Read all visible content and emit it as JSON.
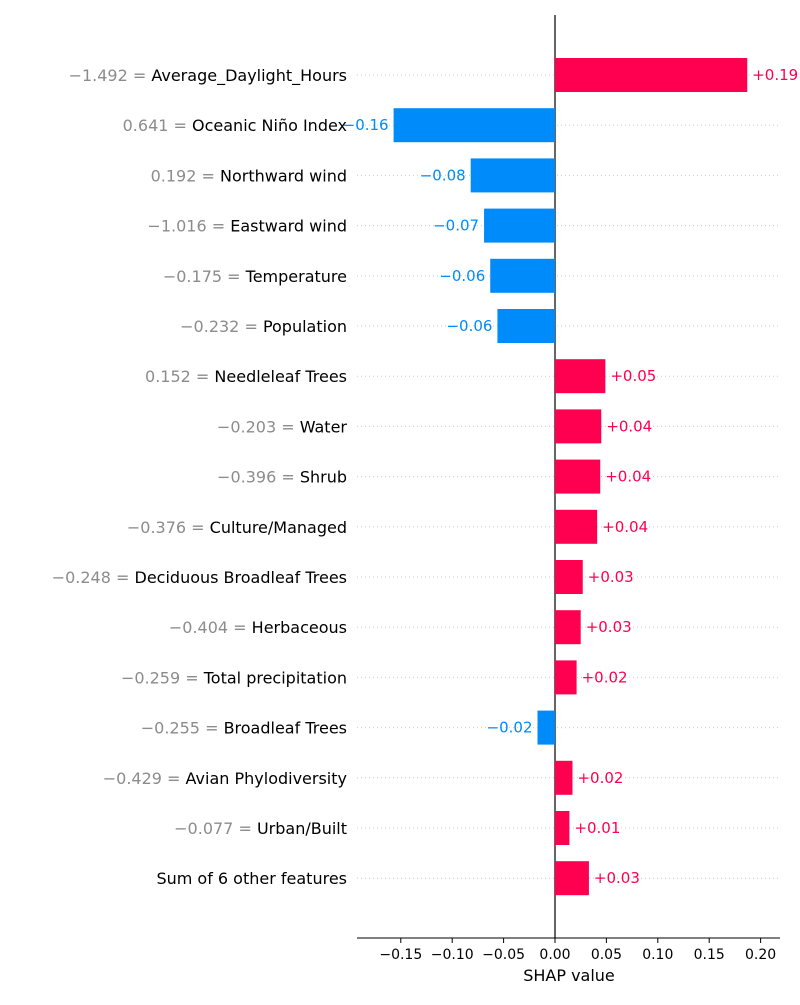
{
  "chart_data": {
    "type": "bar",
    "orientation": "horizontal",
    "title": "",
    "xlabel": "SHAP value",
    "xlim": [
      -0.195,
      0.22
    ],
    "xticks": [
      -0.15,
      -0.1,
      -0.05,
      0.0,
      0.05,
      0.1,
      0.15,
      0.2
    ],
    "xtick_labels": [
      "−0.15",
      "−0.10",
      "−0.05",
      "0.00",
      "0.05",
      "0.10",
      "0.15",
      "0.20"
    ],
    "grid": "dotted horizontal lines per row",
    "colors": {
      "positive": "#ff0051",
      "negative": "#008bfb",
      "feature_value_text": "#8c8c8c"
    },
    "features": [
      {
        "value_text": "−1.492",
        "name": "Average_Daylight_Hours",
        "shap": 0.187,
        "label": "+0.19"
      },
      {
        "value_text": "0.641",
        "name": "Oceanic Niño Index",
        "shap": -0.157,
        "label": "−0.16"
      },
      {
        "value_text": "0.192",
        "name": "Northward wind",
        "shap": -0.082,
        "label": "−0.08"
      },
      {
        "value_text": "−1.016",
        "name": "Eastward wind",
        "shap": -0.069,
        "label": "−0.07"
      },
      {
        "value_text": "−0.175",
        "name": "Temperature",
        "shap": -0.063,
        "label": "−0.06"
      },
      {
        "value_text": "−0.232",
        "name": "Population",
        "shap": -0.056,
        "label": "−0.06"
      },
      {
        "value_text": "0.152",
        "name": "Needleleaf Trees",
        "shap": 0.049,
        "label": "+0.05"
      },
      {
        "value_text": "−0.203",
        "name": "Water",
        "shap": 0.045,
        "label": "+0.04"
      },
      {
        "value_text": "−0.396",
        "name": "Shrub",
        "shap": 0.044,
        "label": "+0.04"
      },
      {
        "value_text": "−0.376",
        "name": "Culture/Managed",
        "shap": 0.041,
        "label": "+0.04"
      },
      {
        "value_text": "−0.248",
        "name": "Deciduous Broadleaf Trees",
        "shap": 0.027,
        "label": "+0.03"
      },
      {
        "value_text": "−0.404",
        "name": "Herbaceous",
        "shap": 0.025,
        "label": "+0.03"
      },
      {
        "value_text": "−0.259",
        "name": "Total precipitation",
        "shap": 0.021,
        "label": "+0.02"
      },
      {
        "value_text": "−0.255",
        "name": "Broadleaf Trees",
        "shap": -0.017,
        "label": "−0.02"
      },
      {
        "value_text": "−0.429",
        "name": "Avian Phylodiversity",
        "shap": 0.017,
        "label": "+0.02"
      },
      {
        "value_text": "−0.077",
        "name": "Urban/Built",
        "shap": 0.014,
        "label": "+0.01"
      },
      {
        "value_text": "",
        "name": "Sum of 6 other features",
        "shap": 0.033,
        "label": "+0.03"
      }
    ]
  }
}
